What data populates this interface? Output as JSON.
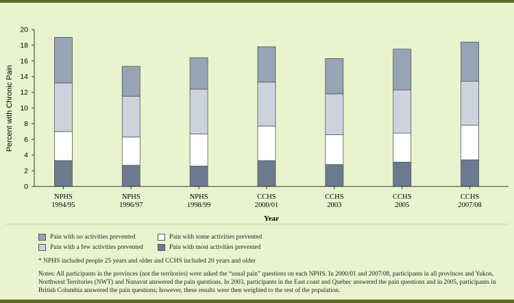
{
  "chart_data": {
    "type": "bar",
    "stacked": true,
    "ylabel": "Percent with Chronic Pain",
    "xlabel": "Year",
    "ylim": [
      0,
      20
    ],
    "yticks": [
      0,
      2,
      4,
      6,
      8,
      10,
      12,
      14,
      16,
      18,
      20
    ],
    "categories": [
      {
        "line1": "NPHS",
        "line2": "1994/95"
      },
      {
        "line1": "NPHS",
        "line2": "1996/97"
      },
      {
        "line1": "NPHS",
        "line2": "1998/99"
      },
      {
        "line1": "CCHS",
        "line2": "2000/01"
      },
      {
        "line1": "CCHS",
        "line2": "2003"
      },
      {
        "line1": "CCHS",
        "line2": "2005"
      },
      {
        "line1": "CCHS",
        "line2": "2007/08"
      }
    ],
    "series": [
      {
        "name": "Pain with most activities prevented",
        "color": "#6b7a8f",
        "values": [
          3.3,
          2.7,
          2.6,
          3.3,
          2.8,
          3.1,
          3.4
        ]
      },
      {
        "name": "Pain with some activities prevented",
        "color": "#ffffff",
        "values": [
          3.7,
          3.6,
          4.1,
          4.4,
          3.8,
          3.7,
          4.4
        ]
      },
      {
        "name": "Pain with a few activities prevented",
        "color": "#ccd3de",
        "values": [
          6.2,
          5.2,
          5.7,
          5.6,
          5.2,
          5.5,
          5.6
        ]
      },
      {
        "name": "Pain with no activities prevented",
        "color": "#97a4b6",
        "values": [
          5.8,
          3.8,
          4.0,
          4.5,
          4.5,
          5.2,
          5.0
        ]
      }
    ],
    "legend": {
      "col1": [
        "Pain with no activities prevented",
        "Pain with a few activities prevented"
      ],
      "col2": [
        "Pain with some activities prevented",
        "Pain with most activities prevented"
      ]
    }
  },
  "footnote": "* NPHS included people 25 years and older and CCHS included 20 years and older",
  "notes": "Notes: All participants in the provinces (not the territories) were asked the “usual pain” questions on each NPHS.  In 2000/01 and 2007/08, participants in all provinces and Yukon, Northwest Territories (NWT) and Nunavut answered the pain questions. In 2003, participants in the East coast and Quebec answered the pain questions and in 2005, participants in British Columbia answered the pain questions; however, these results were then weighted to the rest of the population."
}
